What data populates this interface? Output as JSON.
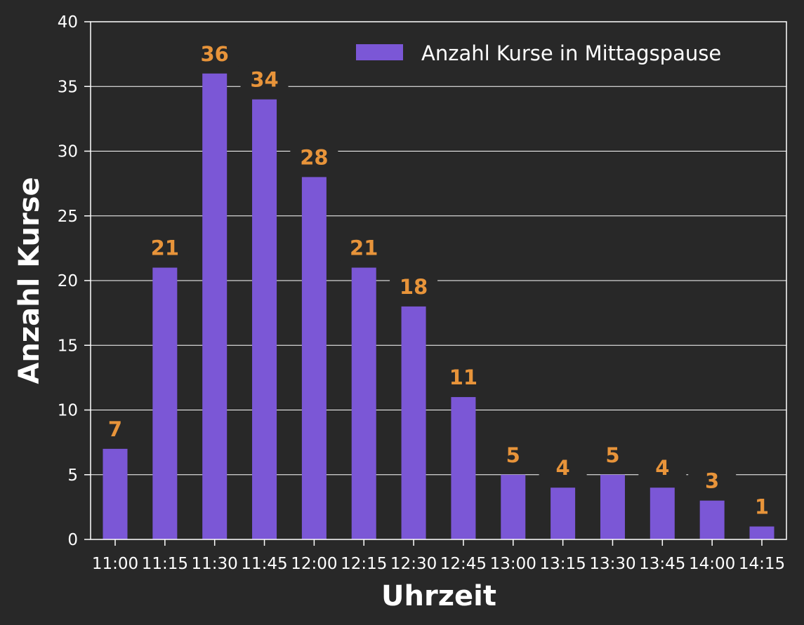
{
  "chart_data": {
    "type": "bar",
    "categories": [
      "11:00",
      "11:15",
      "11:30",
      "11:45",
      "12:00",
      "12:15",
      "12:30",
      "12:45",
      "13:00",
      "13:15",
      "13:30",
      "13:45",
      "14:00",
      "14:15"
    ],
    "series": [
      {
        "name": "Anzahl Kurse in Mittagspause",
        "values": [
          7,
          21,
          36,
          34,
          28,
          21,
          18,
          11,
          5,
          4,
          5,
          4,
          3,
          1
        ]
      }
    ],
    "xlabel": "Uhrzeit",
    "ylabel": "Anzahl Kurse",
    "ylim": [
      0,
      40
    ],
    "yticks": [
      0,
      5,
      10,
      15,
      20,
      25,
      30,
      35,
      40
    ],
    "grid": "y-axis, white",
    "legend": "top-right",
    "data_labels": true
  },
  "colors": {
    "background": "#282828",
    "bar": "#7b57d6",
    "data_label": "#e8943a",
    "text": "#ffffff",
    "grid": "#ffffff"
  }
}
